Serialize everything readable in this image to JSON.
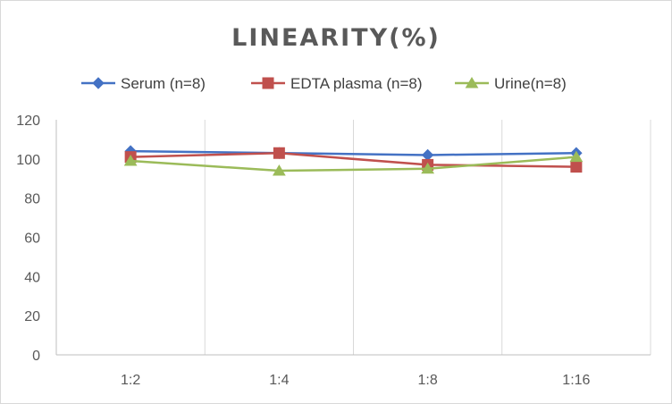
{
  "chart_data": {
    "type": "line",
    "title": "LINEARITY(%)",
    "categories": [
      "1:2",
      "1:4",
      "1:8",
      "1:16"
    ],
    "series": [
      {
        "name": "Serum (n=8)",
        "values": [
          104,
          103,
          102,
          103
        ],
        "color": "#4472c4",
        "marker": "diamond"
      },
      {
        "name": "EDTA plasma (n=8)",
        "values": [
          101,
          103,
          97,
          96
        ],
        "color": "#c0504d",
        "marker": "square"
      },
      {
        "name": "Urine(n=8)",
        "values": [
          99,
          94,
          95,
          101
        ],
        "color": "#9bbb59",
        "marker": "triangle"
      }
    ],
    "ylim": [
      0,
      120
    ],
    "yticks": [
      "0",
      "20",
      "40",
      "60",
      "80",
      "100",
      "120"
    ],
    "grid": "vertical",
    "legend_position": "top"
  }
}
